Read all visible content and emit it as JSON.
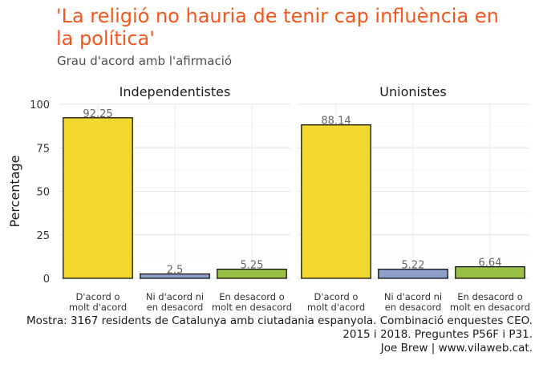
{
  "chart_data": {
    "type": "bar",
    "title": "'La religió no hauria de tenir cap influència en la política'",
    "subtitle": "Grau d'acord amb l'afirmació",
    "ylabel": "Percentage",
    "xlabel": "",
    "ylim": [
      0,
      100
    ],
    "yticks": [
      0,
      25,
      50,
      75,
      100
    ],
    "grid": true,
    "categories": [
      {
        "line1": "D'acord o",
        "line2": "molt d'acord",
        "color": "#f2d82e"
      },
      {
        "line1": "Ni d'acord ni",
        "line2": "en desacord",
        "color": "#8ca0cb"
      },
      {
        "line1": "En desacord o",
        "line2": "molt en desacord",
        "color": "#9abf45"
      }
    ],
    "panels": [
      {
        "name": "Independentistes",
        "values": [
          92.25,
          2.5,
          5.25
        ],
        "labels": [
          "92.25",
          "2.5",
          "5.25"
        ]
      },
      {
        "name": "Unionistes",
        "values": [
          88.14,
          5.22,
          6.64
        ],
        "labels": [
          "88.14",
          "5.22",
          "6.64"
        ]
      }
    ]
  },
  "caption": {
    "line1": "Mostra: 3167 residents de Catalunya amb ciutadania espanyola. Combinació enquestes CEO.",
    "line2": "2015 i 2018. Preguntes P56F i P31.",
    "line3": "Joe Brew | www.vilaweb.cat."
  }
}
